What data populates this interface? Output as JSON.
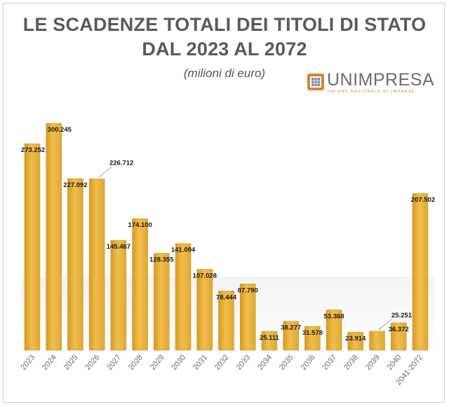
{
  "header": {
    "title_line1": "LE SCADENZE TOTALI DEI TITOLI DI STATO",
    "title_line2": "DAL 2023 AL 2072",
    "subtitle": "(milioni di euro)"
  },
  "logo": {
    "name": "UNIMPRESA",
    "tagline": "UNIONE NAZIONALE DI IMPRESE",
    "color_brand": "#d4882a",
    "color_text": "#6d6d6d"
  },
  "colors": {
    "bar_fill": "#e9b23c",
    "bar_edge": "#c99020",
    "axis_text": "#6a6a6a"
  },
  "chart_data": {
    "type": "bar",
    "title": "LE SCADENZE TOTALI DEI TITOLI DI STATO DAL 2023 AL 2072",
    "subtitle": "(milioni di euro)",
    "categories": [
      "2023",
      "2024",
      "2025",
      "2026",
      "2027",
      "2028",
      "2029",
      "2030",
      "2031",
      "2032",
      "2033",
      "2034",
      "2035",
      "2036",
      "2037",
      "2038",
      "2039",
      "2040",
      "2041-2072"
    ],
    "values": [
      273252,
      300245,
      227092,
      226712,
      145467,
      174100,
      128355,
      141094,
      107028,
      78444,
      87790,
      25111,
      38277,
      31578,
      53368,
      23914,
      25251,
      36372,
      207502
    ],
    "data_labels": [
      "273.252",
      "300.245",
      "227.092",
      "226.712",
      "145.467",
      "174.100",
      "128.355",
      "141.094",
      "107.028",
      "78.444",
      "87.790",
      "25.111",
      "38.277",
      "31.578",
      "53.368",
      "23.914",
      "25.251",
      "36.372",
      "207.502"
    ],
    "xlabel": "",
    "ylabel": "",
    "ylim": [
      0,
      300245
    ],
    "grid": false,
    "legend": "none"
  }
}
